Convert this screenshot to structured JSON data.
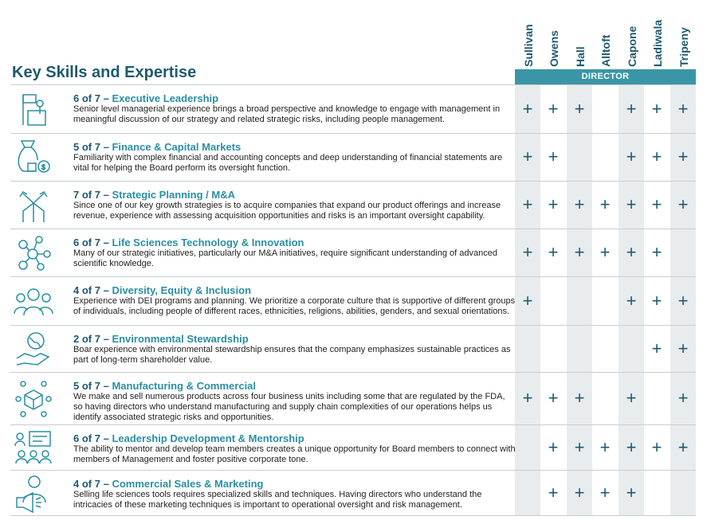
{
  "title": "Key Skills and Expertise",
  "director_label": "DIRECTOR",
  "directors": [
    "Sullivan",
    "Owens",
    "Hall",
    "Alltoft",
    "Capone",
    "Ladiwala",
    "Tripeny"
  ],
  "accent_color": "#2a8fa3",
  "header_color": "#3a96a6",
  "text_color": "#1e5a6e",
  "skills": [
    {
      "count": "6 of 7",
      "dash": " – ",
      "name": "Executive Leadership",
      "icon": "podium-flag-icon",
      "description": "Senior level managerial experience brings a broad perspective and knowledge to engage with management in meaningful discussion of our strategy and related strategic risks, including people management.",
      "marks": [
        true,
        true,
        true,
        false,
        true,
        true,
        true
      ]
    },
    {
      "count": "5 of 7",
      "dash": " – ",
      "name": "Finance & Capital Markets",
      "icon": "money-bag-icon",
      "description": "Familiarity with complex financial and accounting concepts and deep understanding of financial statements are vital for helping the Board perform its oversight function.",
      "marks": [
        true,
        true,
        false,
        false,
        true,
        true,
        true
      ]
    },
    {
      "count": "7 of 7",
      "dash": " – ",
      "name": "Strategic Planning / M&A",
      "icon": "split-arrows-icon",
      "description": "Since one of our key growth strategies is to acquire companies that expand our product offerings and increase revenue, experience with assessing acquisition opportunities and risks is an important oversight capability.",
      "marks": [
        true,
        true,
        true,
        true,
        true,
        true,
        true
      ]
    },
    {
      "count": "6 of 7",
      "dash": " – ",
      "name": "Life Sciences Technology & Innovation",
      "icon": "molecule-icon",
      "description": "Many of our strategic initiatives, particularly our M&A initiatives, require significant understanding of advanced scientific knowledge.",
      "marks": [
        true,
        true,
        true,
        true,
        true,
        true,
        false
      ]
    },
    {
      "count": "4 of 7",
      "dash": " – ",
      "name": "Diversity, Equity & Inclusion",
      "icon": "people-group-icon",
      "description": "Experience with DEI programs and planning. We prioritize a corporate culture that is supportive of different groups of individuals, including people of different races, ethnicities, religions, abilities, genders, and sexual orientations.",
      "marks": [
        true,
        false,
        false,
        false,
        true,
        true,
        true
      ]
    },
    {
      "count": "2 of 7",
      "dash": " – ",
      "name": "Environmental Stewardship",
      "icon": "hand-globe-icon",
      "description": "Boar experience with environmental stewardship ensures that the company emphasizes sustainable practices as part of long-term shareholder value.",
      "marks": [
        false,
        false,
        false,
        false,
        false,
        true,
        true
      ]
    },
    {
      "count": "5 of 7",
      "dash": " – ",
      "name": "Manufacturing & Commercial",
      "icon": "network-box-icon",
      "description": "We make and sell numerous products across four business units including some that are regulated by the FDA, so having directors who understand manufacturing and supply chain complexities of our operations helps us identify associated strategic risks and opportunities.",
      "marks": [
        true,
        true,
        true,
        false,
        true,
        false,
        true
      ]
    },
    {
      "count": "6 of 7",
      "dash": " – ",
      "name": "Leadership Development & Mentorship",
      "icon": "presentation-team-icon",
      "description": "The ability to mentor and develop team members creates a unique opportunity for Board members to connect with members of Management and foster positive corporate tone.",
      "marks": [
        false,
        true,
        true,
        true,
        true,
        true,
        true
      ]
    },
    {
      "count": "4 of 7",
      "dash": " – ",
      "name": "Commercial Sales & Marketing",
      "icon": "megaphone-person-icon",
      "description": "Selling life sciences tools requires specialized skills and techniques. Having directors who understand the intricacies of these marketing techniques is important to operational oversight and risk management.",
      "marks": [
        false,
        true,
        true,
        true,
        true,
        false,
        false
      ]
    }
  ],
  "mark_symbol": "+"
}
